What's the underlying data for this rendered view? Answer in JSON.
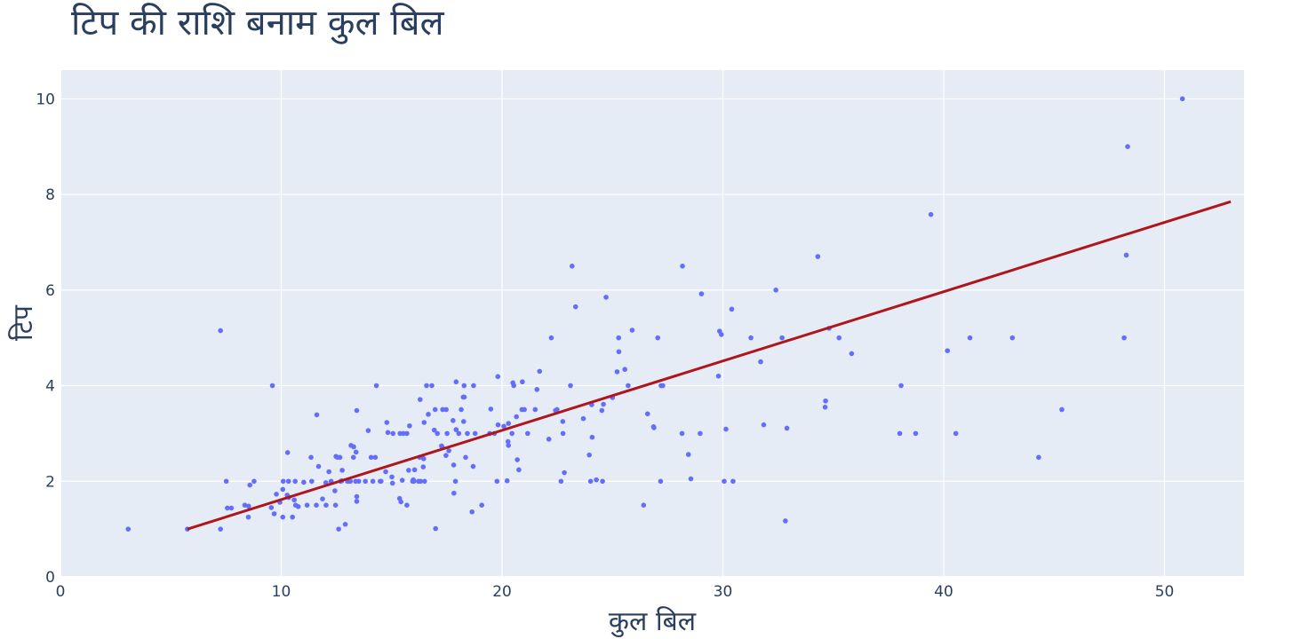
{
  "chart_data": {
    "type": "scatter",
    "title": "टिप की राशि बनाम कुल बिल",
    "xlabel": "कुल बिल",
    "ylabel": "टिप",
    "xlim": [
      0,
      53.6
    ],
    "ylim": [
      0,
      10.6
    ],
    "x_ticks": [
      "0",
      "10",
      "20",
      "30",
      "40",
      "50"
    ],
    "y_ticks": [
      "0",
      "2",
      "4",
      "6",
      "8",
      "10"
    ],
    "grid": true,
    "legend": "none",
    "colors": {
      "plot_bg": "#e5ecf6",
      "points": "#636efa",
      "trendline": "#b0151c",
      "text": "#2a3f5f"
    },
    "series": [
      {
        "type": "scatter",
        "points": [
          [
            3.07,
            1.0
          ],
          [
            5.75,
            1.0
          ],
          [
            7.25,
            1.0
          ],
          [
            7.25,
            5.15
          ],
          [
            7.51,
            2.0
          ],
          [
            7.56,
            1.44
          ],
          [
            7.74,
            1.44
          ],
          [
            8.35,
            1.5
          ],
          [
            8.51,
            1.25
          ],
          [
            8.52,
            1.48
          ],
          [
            8.58,
            1.92
          ],
          [
            8.77,
            2.0
          ],
          [
            9.55,
            1.45
          ],
          [
            9.6,
            4.0
          ],
          [
            9.68,
            1.32
          ],
          [
            9.78,
            1.73
          ],
          [
            9.94,
            1.56
          ],
          [
            10.07,
            1.83
          ],
          [
            10.07,
            1.25
          ],
          [
            10.09,
            2.0
          ],
          [
            10.27,
            1.71
          ],
          [
            10.29,
            2.6
          ],
          [
            10.33,
            1.67
          ],
          [
            10.33,
            2.0
          ],
          [
            10.34,
            1.66
          ],
          [
            10.51,
            1.25
          ],
          [
            10.59,
            1.61
          ],
          [
            10.63,
            2.0
          ],
          [
            10.65,
            1.5
          ],
          [
            10.77,
            1.47
          ],
          [
            11.02,
            1.98
          ],
          [
            11.17,
            1.5
          ],
          [
            11.35,
            2.5
          ],
          [
            11.38,
            2.0
          ],
          [
            11.59,
            1.5
          ],
          [
            11.61,
            3.39
          ],
          [
            11.69,
            2.31
          ],
          [
            11.87,
            1.63
          ],
          [
            12.02,
            1.97
          ],
          [
            12.03,
            1.5
          ],
          [
            12.16,
            2.2
          ],
          [
            12.26,
            2.0
          ],
          [
            12.43,
            1.8
          ],
          [
            12.46,
            1.5
          ],
          [
            12.48,
            2.52
          ],
          [
            12.54,
            2.5
          ],
          [
            12.6,
            1.0
          ],
          [
            12.66,
            2.5
          ],
          [
            12.69,
            2.0
          ],
          [
            12.74,
            2.01
          ],
          [
            12.76,
            2.23
          ],
          [
            12.9,
            1.1
          ],
          [
            13.0,
            2.0
          ],
          [
            13.03,
            2.0
          ],
          [
            13.13,
            2.0
          ],
          [
            13.16,
            2.75
          ],
          [
            13.27,
            2.5
          ],
          [
            13.28,
            2.72
          ],
          [
            13.37,
            2.0
          ],
          [
            13.39,
            2.61
          ],
          [
            13.42,
            3.48
          ],
          [
            13.42,
            1.68
          ],
          [
            13.42,
            1.58
          ],
          [
            13.51,
            2.0
          ],
          [
            13.81,
            2.0
          ],
          [
            13.94,
            3.06
          ],
          [
            14.07,
            2.5
          ],
          [
            14.15,
            2.0
          ],
          [
            14.26,
            2.5
          ],
          [
            14.31,
            4.0
          ],
          [
            14.48,
            2.0
          ],
          [
            14.52,
            2.0
          ],
          [
            14.73,
            2.2
          ],
          [
            14.78,
            3.23
          ],
          [
            14.83,
            3.02
          ],
          [
            15.01,
            2.09
          ],
          [
            15.04,
            1.96
          ],
          [
            15.06,
            3.0
          ],
          [
            15.36,
            1.64
          ],
          [
            15.38,
            3.0
          ],
          [
            15.42,
            1.57
          ],
          [
            15.48,
            2.02
          ],
          [
            15.53,
            3.0
          ],
          [
            15.69,
            3.0
          ],
          [
            15.69,
            1.5
          ],
          [
            15.77,
            2.23
          ],
          [
            15.81,
            3.16
          ],
          [
            15.95,
            2.0
          ],
          [
            15.98,
            2.03
          ],
          [
            16.0,
            2.0
          ],
          [
            16.04,
            2.24
          ],
          [
            16.21,
            2.0
          ],
          [
            16.27,
            2.5
          ],
          [
            16.29,
            3.71
          ],
          [
            16.31,
            2.0
          ],
          [
            16.4,
            2.5
          ],
          [
            16.43,
            2.3
          ],
          [
            16.45,
            2.47
          ],
          [
            16.47,
            3.23
          ],
          [
            16.49,
            2.0
          ],
          [
            16.58,
            4.0
          ],
          [
            16.66,
            3.4
          ],
          [
            16.82,
            4.0
          ],
          [
            16.93,
            3.07
          ],
          [
            16.97,
            3.5
          ],
          [
            16.99,
            1.01
          ],
          [
            17.07,
            3.0
          ],
          [
            17.26,
            2.74
          ],
          [
            17.29,
            2.71
          ],
          [
            17.31,
            3.5
          ],
          [
            17.46,
            2.54
          ],
          [
            17.47,
            3.5
          ],
          [
            17.51,
            3.0
          ],
          [
            17.59,
            2.64
          ],
          [
            17.78,
            3.27
          ],
          [
            17.81,
            2.34
          ],
          [
            17.82,
            1.75
          ],
          [
            17.89,
            2.0
          ],
          [
            17.92,
            4.08
          ],
          [
            17.92,
            3.08
          ],
          [
            18.04,
            3.0
          ],
          [
            18.15,
            3.5
          ],
          [
            18.24,
            3.76
          ],
          [
            18.26,
            3.25
          ],
          [
            18.28,
            4.0
          ],
          [
            18.29,
            3.76
          ],
          [
            18.35,
            2.5
          ],
          [
            18.43,
            3.0
          ],
          [
            18.64,
            1.36
          ],
          [
            18.69,
            2.31
          ],
          [
            18.71,
            4.0
          ],
          [
            18.78,
            3.0
          ],
          [
            19.08,
            1.5
          ],
          [
            19.44,
            3.0
          ],
          [
            19.49,
            3.51
          ],
          [
            19.65,
            3.0
          ],
          [
            19.77,
            2.0
          ],
          [
            19.81,
            4.19
          ],
          [
            19.82,
            3.18
          ],
          [
            20.08,
            3.15
          ],
          [
            20.23,
            2.01
          ],
          [
            20.27,
            2.83
          ],
          [
            20.29,
            2.75
          ],
          [
            20.29,
            3.21
          ],
          [
            20.45,
            3.0
          ],
          [
            20.49,
            4.06
          ],
          [
            20.53,
            4.0
          ],
          [
            20.65,
            3.35
          ],
          [
            20.69,
            2.45
          ],
          [
            20.76,
            2.24
          ],
          [
            20.9,
            3.5
          ],
          [
            20.92,
            4.08
          ],
          [
            21.01,
            3.5
          ],
          [
            21.16,
            3.0
          ],
          [
            21.5,
            3.5
          ],
          [
            21.58,
            3.92
          ],
          [
            21.7,
            4.3
          ],
          [
            22.12,
            2.88
          ],
          [
            22.23,
            5.0
          ],
          [
            22.42,
            3.48
          ],
          [
            22.49,
            3.5
          ],
          [
            22.67,
            2.0
          ],
          [
            22.75,
            3.25
          ],
          [
            22.76,
            3.0
          ],
          [
            22.82,
            2.18
          ],
          [
            23.1,
            4.0
          ],
          [
            23.17,
            6.5
          ],
          [
            23.33,
            5.65
          ],
          [
            23.68,
            3.31
          ],
          [
            23.95,
            2.55
          ],
          [
            24.01,
            2.0
          ],
          [
            24.06,
            3.6
          ],
          [
            24.08,
            2.92
          ],
          [
            24.27,
            2.03
          ],
          [
            24.52,
            3.48
          ],
          [
            24.55,
            2.0
          ],
          [
            24.59,
            3.61
          ],
          [
            24.71,
            5.85
          ],
          [
            25.0,
            3.75
          ],
          [
            25.21,
            4.29
          ],
          [
            25.28,
            5.0
          ],
          [
            25.29,
            4.71
          ],
          [
            25.56,
            4.34
          ],
          [
            25.71,
            4.0
          ],
          [
            25.89,
            5.16
          ],
          [
            26.41,
            1.5
          ],
          [
            26.59,
            3.41
          ],
          [
            26.86,
            3.14
          ],
          [
            26.88,
            3.12
          ],
          [
            27.05,
            5.0
          ],
          [
            27.18,
            2.0
          ],
          [
            27.2,
            4.0
          ],
          [
            27.28,
            4.0
          ],
          [
            28.15,
            3.0
          ],
          [
            28.17,
            6.5
          ],
          [
            28.44,
            2.56
          ],
          [
            28.55,
            2.05
          ],
          [
            28.97,
            3.0
          ],
          [
            29.03,
            5.92
          ],
          [
            29.8,
            4.2
          ],
          [
            29.85,
            5.14
          ],
          [
            29.93,
            5.07
          ],
          [
            30.06,
            2.0
          ],
          [
            30.14,
            3.09
          ],
          [
            30.4,
            5.6
          ],
          [
            30.46,
            2.0
          ],
          [
            31.27,
            5.0
          ],
          [
            31.71,
            4.5
          ],
          [
            31.85,
            3.18
          ],
          [
            32.4,
            6.0
          ],
          [
            32.68,
            5.0
          ],
          [
            32.83,
            1.17
          ],
          [
            32.9,
            3.11
          ],
          [
            34.3,
            6.7
          ],
          [
            34.63,
            3.55
          ],
          [
            34.65,
            3.68
          ],
          [
            34.81,
            5.2
          ],
          [
            35.26,
            5.0
          ],
          [
            35.83,
            4.67
          ],
          [
            38.01,
            3.0
          ],
          [
            38.07,
            4.0
          ],
          [
            38.73,
            3.0
          ],
          [
            39.42,
            7.58
          ],
          [
            40.17,
            4.73
          ],
          [
            40.55,
            3.0
          ],
          [
            41.19,
            5.0
          ],
          [
            43.11,
            5.0
          ],
          [
            44.3,
            2.5
          ],
          [
            45.35,
            3.5
          ],
          [
            48.17,
            5.0
          ],
          [
            48.27,
            6.73
          ],
          [
            48.33,
            9.0
          ],
          [
            50.81,
            10.0
          ]
        ]
      },
      {
        "type": "line",
        "points": [
          [
            5.75,
            1.0
          ],
          [
            53.0,
            7.85
          ]
        ]
      }
    ]
  }
}
